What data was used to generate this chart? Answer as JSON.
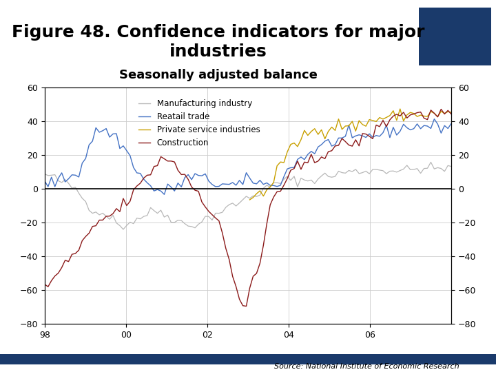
{
  "title": "Figure 48. Confidence indicators for major\nindustries",
  "subtitle": "Seasonally adjusted balance",
  "source": "Source: National Institute of Economic Research",
  "legend_labels": [
    "Manufacturing industry",
    "Reatail trade",
    "Private service industries",
    "Construction"
  ],
  "line_colors": [
    "#b8b8b8",
    "#4472c4",
    "#c8a000",
    "#8b1a1a"
  ],
  "ylim": [
    -80,
    60
  ],
  "yticks": [
    -80,
    -60,
    -40,
    -20,
    0,
    20,
    40,
    60
  ],
  "xtick_labels": [
    "98",
    "00",
    "02",
    "04",
    "06"
  ],
  "background_color": "#ffffff",
  "plot_bg": "#ffffff",
  "title_fontsize": 18,
  "subtitle_fontsize": 13,
  "footer_bar_color": "#1a3a6b",
  "logo_color": "#1a3a6b",
  "n_points": 120
}
